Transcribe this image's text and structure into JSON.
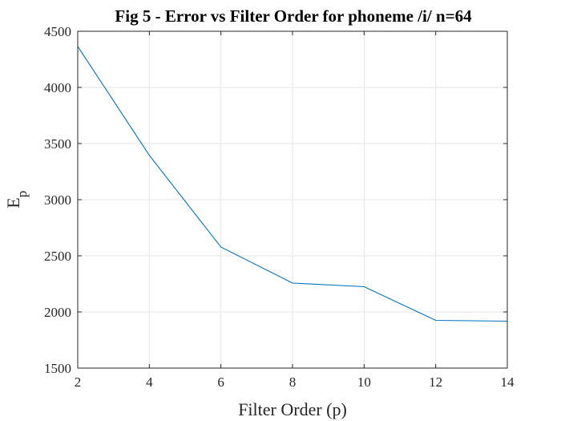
{
  "chart_data": {
    "type": "line",
    "title": "Fig 5 - Error vs Filter Order for phoneme /i/ n=64",
    "xlabel": "Filter Order (p)",
    "ylabel_main": "E",
    "ylabel_sub": "p",
    "xlim": [
      2,
      14
    ],
    "ylim": [
      1500,
      4500
    ],
    "x_ticks": [
      2,
      4,
      6,
      8,
      10,
      12,
      14
    ],
    "y_ticks": [
      1500,
      2000,
      2500,
      3000,
      3500,
      4000,
      4500
    ],
    "grid": true,
    "series": [
      {
        "color": "#0072bd",
        "x": [
          2,
          4,
          6,
          8,
          10,
          12,
          14
        ],
        "y": [
          4365,
          3395,
          2578,
          2257,
          2225,
          1925,
          1918
        ]
      }
    ]
  }
}
